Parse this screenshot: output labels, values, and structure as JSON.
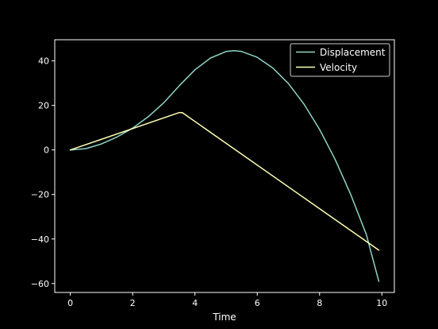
{
  "chart_data": {
    "type": "line",
    "title": "",
    "xlabel": "Time",
    "ylabel": "",
    "xlim": [
      -0.5,
      10.4
    ],
    "ylim": [
      -64,
      49.5
    ],
    "xticks": [
      0,
      2,
      4,
      6,
      8,
      10
    ],
    "yticks": [
      40,
      20,
      0,
      -20,
      -40,
      -60
    ],
    "xtick_labels": [
      "0",
      "2",
      "4",
      "6",
      "8",
      "10"
    ],
    "ytick_labels": [
      "40",
      "20",
      "0",
      "−20",
      "−40",
      "−60"
    ],
    "grid": false,
    "legend_position": "top-right",
    "background": "#000000",
    "axis_color": "#ffffff",
    "series": [
      {
        "name": "Displacement",
        "color": "#8dd3c7",
        "x": [
          0,
          0.5,
          1,
          1.5,
          2,
          2.5,
          3,
          3.5,
          4,
          4.5,
          5,
          5.25,
          5.5,
          6,
          6.5,
          7,
          7.5,
          8,
          8.5,
          9,
          9.5,
          9.9
        ],
        "values": [
          0,
          0.6,
          2.7,
          5.8,
          9.8,
          14.9,
          21.2,
          28.9,
          36.0,
          41.3,
          44.2,
          44.6,
          44.2,
          41.6,
          36.8,
          29.8,
          20.6,
          9.2,
          -4.3,
          -20.0,
          -38.0,
          -59.0
        ]
      },
      {
        "name": "Velocity",
        "color": "#ffffb3",
        "x": [
          0,
          3.5,
          3.6,
          9.9
        ],
        "values": [
          0,
          16.8,
          16.7,
          -45.0
        ]
      }
    ]
  }
}
